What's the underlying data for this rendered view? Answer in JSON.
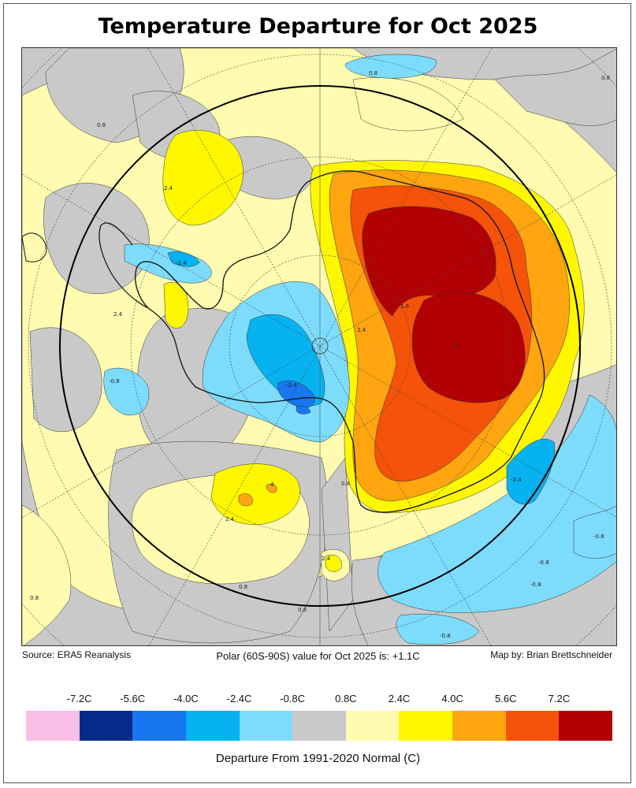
{
  "title": "Temperature Departure for Oct 2025",
  "source_text": "Source: ERA5 Reanalysis",
  "polar_value_text": "Polar (60S-90S) value for Oct 2025 is: +1.1C",
  "credit_text": "Map by: Brian Brettschneider",
  "legend": {
    "title": "Departure From 1991-2020 Normal (C)",
    "tick_labels": [
      "-7.2C",
      "-5.6C",
      "-4.0C",
      "-2.4C",
      "-0.8C",
      "0.8C",
      "2.4C",
      "4.0C",
      "5.6C",
      "7.2C"
    ],
    "colors": [
      "#f9bfe6",
      "#062a8a",
      "#1776f0",
      "#06b2f0",
      "#7ddcfb",
      "#c9c9c9",
      "#fffbb0",
      "#fff700",
      "#ffa50f",
      "#f45309",
      "#b10104"
    ]
  },
  "contour_labels": [
    "-0.8",
    "-2.4",
    "0.8",
    "2.4",
    "4",
    "5.6",
    "7.2"
  ],
  "colors": {
    "gray": "#c9c9c9",
    "light_yellow": "#fffbb0",
    "yellow": "#fff700",
    "orange": "#ffa50f",
    "dark_orange": "#f45309",
    "red": "#b10104",
    "light_blue": "#7ddcfb",
    "blue": "#06b2f0",
    "mid_blue": "#1776f0",
    "dark_blue": "#062a8a"
  }
}
